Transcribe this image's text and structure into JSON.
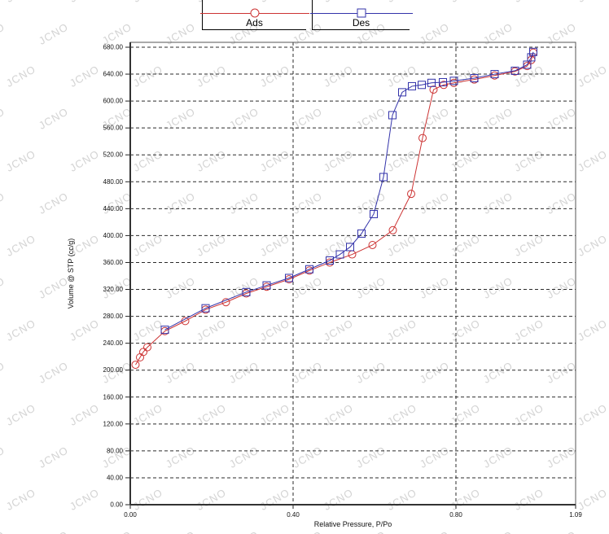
{
  "watermark": {
    "text": "JCNO",
    "color": "#c9c9c9",
    "angle_deg": -30
  },
  "legend": {
    "entries": [
      {
        "label": "Ads",
        "marker": "circle",
        "color": "#CC3333"
      },
      {
        "label": "Des",
        "marker": "square",
        "color": "#3333AA"
      }
    ]
  },
  "chart_data": {
    "type": "line",
    "title": "",
    "xlabel": "Relative Pressure, P/Po",
    "ylabel": "Volume @ STP (cc/g)",
    "xlim": [
      0,
      1.094
    ],
    "ylim": [
      0,
      680
    ],
    "grid": {
      "horizontal": "dashed every 40 units",
      "vertical": [
        0.4,
        0.8
      ]
    },
    "legend_position": "top-center",
    "x_ticks": [
      {
        "v": 0,
        "label": "0.00"
      },
      {
        "v": 0.4,
        "label": "0.40"
      },
      {
        "v": 0.8,
        "label": "0.80"
      },
      {
        "v": 1.094,
        "label": "1.09"
      }
    ],
    "y_ticks": [
      {
        "v": 0,
        "label": "0.00"
      },
      {
        "v": 40,
        "label": "40.00"
      },
      {
        "v": 80,
        "label": "80.00"
      },
      {
        "v": 120,
        "label": "120.00"
      },
      {
        "v": 160,
        "label": "160.00"
      },
      {
        "v": 200,
        "label": "200.00"
      },
      {
        "v": 240,
        "label": "240.00"
      },
      {
        "v": 280,
        "label": "280.00"
      },
      {
        "v": 320,
        "label": "320.00"
      },
      {
        "v": 360,
        "label": "360.00"
      },
      {
        "v": 400,
        "label": "400.00"
      },
      {
        "v": 440,
        "label": "440.00"
      },
      {
        "v": 480,
        "label": "480.00"
      },
      {
        "v": 520,
        "label": "520.00"
      },
      {
        "v": 560,
        "label": "560.00"
      },
      {
        "v": 600,
        "label": "600.00"
      },
      {
        "v": 640,
        "label": "640.00"
      },
      {
        "v": 680,
        "label": "680.00"
      }
    ],
    "series": [
      {
        "name": "Ads",
        "marker": "circle",
        "color": "#CC3333",
        "x": [
          0.013,
          0.024,
          0.032,
          0.042,
          0.085,
          0.135,
          0.185,
          0.235,
          0.285,
          0.335,
          0.39,
          0.44,
          0.49,
          0.545,
          0.595,
          0.645,
          0.69,
          0.718,
          0.745,
          0.77,
          0.795,
          0.845,
          0.895,
          0.945,
          0.975,
          0.985,
          0.99
        ],
        "y": [
          208,
          219,
          227,
          234,
          258,
          273,
          290,
          301,
          314,
          324,
          335,
          348,
          360,
          372,
          386,
          408,
          462,
          545,
          617,
          624,
          627,
          632,
          638,
          644,
          652,
          661,
          672
        ]
      },
      {
        "name": "Des",
        "marker": "square",
        "color": "#3333AA",
        "x": [
          0.085,
          0.185,
          0.285,
          0.335,
          0.39,
          0.44,
          0.49,
          0.515,
          0.54,
          0.568,
          0.598,
          0.622,
          0.644,
          0.668,
          0.692,
          0.716,
          0.74,
          0.768,
          0.795,
          0.845,
          0.895,
          0.945,
          0.975,
          0.985,
          0.99
        ],
        "y": [
          260,
          292,
          316,
          326,
          337,
          350,
          363,
          372,
          383,
          403,
          432,
          487,
          579,
          613,
          622,
          624,
          627,
          628,
          630,
          634,
          640,
          645,
          654,
          665,
          673
        ]
      }
    ]
  }
}
